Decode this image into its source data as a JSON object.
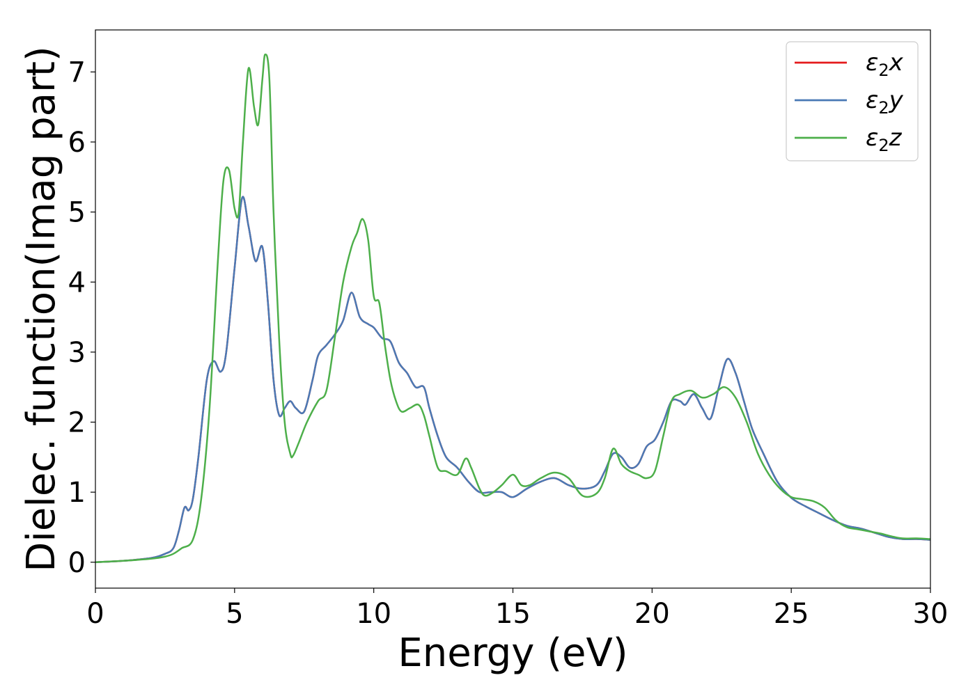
{
  "chart_data": {
    "type": "line",
    "title": "",
    "xlabel": "Energy (eV)",
    "ylabel": "Dielec. function(Imag part)",
    "xlim": [
      0,
      30
    ],
    "ylim": [
      -0.37,
      7.6
    ],
    "xticks": [
      0,
      5,
      10,
      15,
      20,
      25,
      30
    ],
    "yticks": [
      0,
      1,
      2,
      3,
      4,
      5,
      6,
      7
    ],
    "grid": false,
    "legend_position": "top-right",
    "series": [
      {
        "name": "ε2x",
        "legend": {
          "base": "ε",
          "sub": "2",
          "suffix": "x"
        },
        "color": "#e41a1c",
        "x": [
          0,
          1,
          2,
          2.5,
          2.8,
          3.0,
          3.2,
          3.35,
          3.5,
          3.7,
          4.0,
          4.25,
          4.5,
          4.7,
          5.0,
          5.27,
          5.5,
          5.75,
          6.0,
          6.2,
          6.4,
          6.6,
          6.8,
          7.0,
          7.2,
          7.5,
          7.8,
          8.0,
          8.3,
          8.6,
          8.9,
          9.2,
          9.5,
          9.8,
          10.0,
          10.3,
          10.6,
          10.9,
          11.2,
          11.5,
          11.8,
          12.0,
          12.3,
          12.6,
          13.0,
          13.4,
          13.8,
          14.2,
          14.6,
          15.0,
          15.5,
          16.0,
          16.5,
          17.0,
          17.5,
          18.0,
          18.3,
          18.6,
          18.9,
          19.2,
          19.5,
          19.8,
          20.1,
          20.4,
          20.7,
          21.0,
          21.2,
          21.5,
          21.8,
          22.1,
          22.4,
          22.7,
          23.0,
          23.3,
          23.6,
          24.0,
          24.5,
          25.0,
          25.5,
          26.0,
          26.5,
          27.0,
          27.5,
          28.0,
          28.5,
          29.0,
          29.5,
          30
        ],
        "values": [
          0.0,
          0.02,
          0.06,
          0.12,
          0.2,
          0.45,
          0.78,
          0.74,
          0.9,
          1.5,
          2.6,
          2.87,
          2.72,
          3.0,
          4.2,
          5.2,
          4.8,
          4.3,
          4.5,
          3.7,
          2.6,
          2.1,
          2.2,
          2.3,
          2.2,
          2.15,
          2.6,
          2.95,
          3.1,
          3.25,
          3.45,
          3.85,
          3.5,
          3.4,
          3.35,
          3.2,
          3.15,
          2.85,
          2.7,
          2.5,
          2.5,
          2.2,
          1.8,
          1.5,
          1.35,
          1.15,
          1.0,
          1.0,
          1.0,
          0.93,
          1.05,
          1.15,
          1.2,
          1.1,
          1.05,
          1.1,
          1.3,
          1.55,
          1.5,
          1.35,
          1.4,
          1.65,
          1.75,
          2.0,
          2.3,
          2.3,
          2.25,
          2.4,
          2.2,
          2.05,
          2.5,
          2.9,
          2.7,
          2.3,
          1.9,
          1.55,
          1.15,
          0.92,
          0.8,
          0.7,
          0.6,
          0.52,
          0.48,
          0.42,
          0.36,
          0.33,
          0.33,
          0.32
        ]
      },
      {
        "name": "ε2y",
        "legend": {
          "base": "ε",
          "sub": "2",
          "suffix": "y"
        },
        "color": "#4a7ab5",
        "x": [
          0,
          1,
          2,
          2.5,
          2.8,
          3.0,
          3.2,
          3.35,
          3.5,
          3.7,
          4.0,
          4.25,
          4.5,
          4.7,
          5.0,
          5.27,
          5.5,
          5.75,
          6.0,
          6.2,
          6.4,
          6.6,
          6.8,
          7.0,
          7.2,
          7.5,
          7.8,
          8.0,
          8.3,
          8.6,
          8.9,
          9.2,
          9.5,
          9.8,
          10.0,
          10.3,
          10.6,
          10.9,
          11.2,
          11.5,
          11.8,
          12.0,
          12.3,
          12.6,
          13.0,
          13.4,
          13.8,
          14.2,
          14.6,
          15.0,
          15.5,
          16.0,
          16.5,
          17.0,
          17.5,
          18.0,
          18.3,
          18.6,
          18.9,
          19.2,
          19.5,
          19.8,
          20.1,
          20.4,
          20.7,
          21.0,
          21.2,
          21.5,
          21.8,
          22.1,
          22.4,
          22.7,
          23.0,
          23.3,
          23.6,
          24.0,
          24.5,
          25.0,
          25.5,
          26.0,
          26.5,
          27.0,
          27.5,
          28.0,
          28.5,
          29.0,
          29.5,
          30
        ],
        "values": [
          0.0,
          0.02,
          0.06,
          0.12,
          0.2,
          0.45,
          0.78,
          0.74,
          0.9,
          1.5,
          2.6,
          2.87,
          2.72,
          3.0,
          4.2,
          5.2,
          4.8,
          4.3,
          4.5,
          3.7,
          2.6,
          2.1,
          2.2,
          2.3,
          2.2,
          2.15,
          2.6,
          2.95,
          3.1,
          3.25,
          3.45,
          3.85,
          3.5,
          3.4,
          3.35,
          3.2,
          3.15,
          2.85,
          2.7,
          2.5,
          2.5,
          2.2,
          1.8,
          1.5,
          1.35,
          1.15,
          1.0,
          1.0,
          1.0,
          0.93,
          1.05,
          1.15,
          1.2,
          1.1,
          1.05,
          1.1,
          1.3,
          1.55,
          1.5,
          1.35,
          1.4,
          1.65,
          1.75,
          2.0,
          2.3,
          2.3,
          2.25,
          2.4,
          2.2,
          2.05,
          2.5,
          2.9,
          2.7,
          2.3,
          1.9,
          1.55,
          1.15,
          0.92,
          0.8,
          0.7,
          0.6,
          0.52,
          0.48,
          0.42,
          0.36,
          0.33,
          0.33,
          0.32
        ]
      },
      {
        "name": "ε2z",
        "legend": {
          "base": "ε",
          "sub": "2",
          "suffix": "z"
        },
        "color": "#4daf4a",
        "x": [
          0,
          1,
          2,
          2.5,
          2.8,
          3.1,
          3.5,
          3.8,
          4.1,
          4.4,
          4.6,
          4.8,
          5.0,
          5.15,
          5.3,
          5.5,
          5.7,
          5.85,
          6.0,
          6.1,
          6.25,
          6.4,
          6.6,
          6.8,
          7.0,
          7.1,
          7.3,
          7.6,
          8.0,
          8.3,
          8.6,
          8.9,
          9.2,
          9.4,
          9.6,
          9.8,
          10.0,
          10.2,
          10.4,
          10.6,
          10.8,
          11.0,
          11.3,
          11.6,
          11.8,
          12.0,
          12.3,
          12.6,
          13.0,
          13.3,
          13.5,
          13.8,
          14.0,
          14.3,
          14.6,
          15.0,
          15.3,
          15.6,
          16.0,
          16.5,
          17.0,
          17.5,
          18.0,
          18.3,
          18.6,
          18.9,
          19.2,
          19.5,
          19.8,
          20.1,
          20.4,
          20.7,
          21.0,
          21.4,
          21.8,
          22.2,
          22.6,
          23.0,
          23.4,
          23.8,
          24.2,
          24.6,
          25.0,
          25.4,
          25.8,
          26.2,
          26.6,
          27.0,
          27.4,
          27.8,
          28.2,
          28.6,
          29.0,
          29.5,
          30
        ],
        "values": [
          0.0,
          0.02,
          0.05,
          0.08,
          0.12,
          0.2,
          0.32,
          0.9,
          2.2,
          4.3,
          5.45,
          5.6,
          5.05,
          5.0,
          6.0,
          7.05,
          6.5,
          6.25,
          6.9,
          7.25,
          6.9,
          5.0,
          3.2,
          2.0,
          1.55,
          1.52,
          1.7,
          2.0,
          2.3,
          2.45,
          3.2,
          4.0,
          4.5,
          4.7,
          4.9,
          4.6,
          3.8,
          3.7,
          3.1,
          2.6,
          2.3,
          2.15,
          2.2,
          2.25,
          2.1,
          1.8,
          1.35,
          1.3,
          1.25,
          1.48,
          1.35,
          1.05,
          0.95,
          1.0,
          1.1,
          1.25,
          1.1,
          1.1,
          1.2,
          1.28,
          1.2,
          0.95,
          0.98,
          1.2,
          1.62,
          1.4,
          1.3,
          1.25,
          1.2,
          1.3,
          1.8,
          2.3,
          2.4,
          2.45,
          2.35,
          2.4,
          2.5,
          2.35,
          2.0,
          1.55,
          1.25,
          1.05,
          0.93,
          0.9,
          0.87,
          0.78,
          0.6,
          0.5,
          0.47,
          0.44,
          0.41,
          0.37,
          0.34,
          0.34,
          0.33
        ]
      }
    ]
  }
}
